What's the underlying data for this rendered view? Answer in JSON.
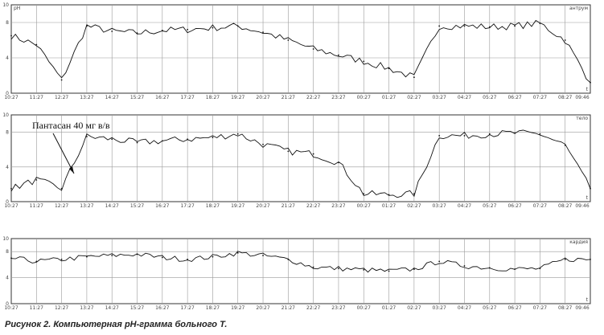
{
  "caption": "Рисунок 2. Компьютерная pH-грамма больного Т.",
  "annotation": "Пантасан 40 мг в/в",
  "chart_data": [
    {
      "type": "line",
      "name": "антрум",
      "ylabel": "pH",
      "yticks": [
        "10",
        "8",
        "4",
        "0"
      ],
      "ylim": [
        0,
        10
      ],
      "x": [
        "10:27",
        "11:27",
        "12:27",
        "13:27",
        "14:27",
        "15:27",
        "16:27",
        "17:27",
        "18:27",
        "19:27",
        "20:27",
        "21:27",
        "22:27",
        "23:27",
        "00:27",
        "01:27",
        "02:27",
        "03:27",
        "04:27",
        "05:27",
        "06:27",
        "07:27",
        "08:27",
        "09:46"
      ],
      "xunit": "t",
      "values": [
        6.5,
        5.5,
        1.5,
        7.6,
        7.0,
        6.8,
        7.1,
        7.2,
        7.4,
        7.6,
        6.9,
        6.0,
        5.0,
        4.3,
        3.6,
        2.8,
        1.8,
        7.6,
        7.6,
        7.5,
        7.6,
        7.9,
        6.0,
        1.2
      ]
    },
    {
      "type": "line",
      "name": "тело",
      "ylabel": "",
      "yticks": [
        "10",
        "8",
        "4",
        "0"
      ],
      "ylim": [
        0,
        10
      ],
      "x": [
        "10:27",
        "11:27",
        "12:27",
        "13:27",
        "14:27",
        "15:27",
        "16:27",
        "17:27",
        "18:27",
        "19:27",
        "20:27",
        "21:27",
        "22:27",
        "23:27",
        "00:27",
        "01:27",
        "02:27",
        "03:27",
        "04:27",
        "05:27",
        "06:27",
        "07:27",
        "08:27",
        "09:46"
      ],
      "xunit": "t",
      "values": [
        1.5,
        2.5,
        1.5,
        7.5,
        7.2,
        6.8,
        7.0,
        7.2,
        7.4,
        7.8,
        6.6,
        5.8,
        5.5,
        4.5,
        0.9,
        0.8,
        0.9,
        7.6,
        7.6,
        7.8,
        7.9,
        7.8,
        6.5,
        1.5
      ]
    },
    {
      "type": "line",
      "name": "кардия",
      "ylabel": "",
      "yticks": [
        "10",
        "8",
        "4",
        "0"
      ],
      "ylim": [
        0,
        10
      ],
      "x": [
        "10:27",
        "11:27",
        "12:27",
        "13:27",
        "14:27",
        "15:27",
        "16:27",
        "17:27",
        "18:27",
        "19:27",
        "20:27",
        "21:27",
        "22:27",
        "23:27",
        "00:27",
        "01:27",
        "02:27",
        "03:27",
        "04:27",
        "05:27",
        "06:27",
        "07:27",
        "08:27",
        "09:46"
      ],
      "xunit": "t",
      "values": [
        7.0,
        6.5,
        6.8,
        7.2,
        7.4,
        7.6,
        7.1,
        6.8,
        7.2,
        7.8,
        7.4,
        6.8,
        5.6,
        5.4,
        5.2,
        5.0,
        5.3,
        6.5,
        5.8,
        5.5,
        5.3,
        5.4,
        6.8,
        6.8
      ]
    }
  ]
}
